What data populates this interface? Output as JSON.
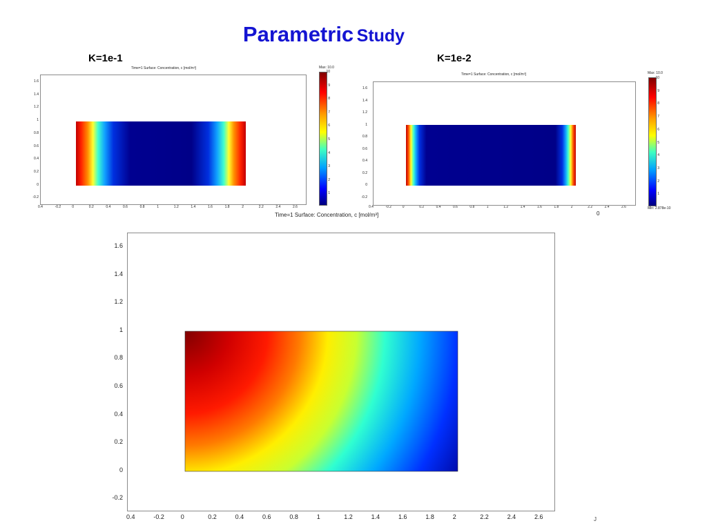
{
  "title": {
    "main": "Parametric",
    "second": "Study"
  },
  "panels": [
    {
      "label": "K=1e-1",
      "header": "Time=1  Surface: Concentration, c [mol/m³]",
      "colorbar_max": "Max: 10.0",
      "colorbar_min": "",
      "colorbar_ticks": [
        "10",
        "9",
        "8",
        "7",
        "6",
        "5",
        "4",
        "3",
        "2",
        "1"
      ],
      "x_ticks": [
        "0.4",
        "-0.2",
        "0",
        "0.2",
        "0.4",
        "0.6",
        "0.8",
        "1",
        "1.2",
        "1.4",
        "1.6",
        "1.8",
        "2",
        "2.2",
        "2.4",
        "2.6"
      ],
      "y_ticks": [
        "1.6",
        "1.4",
        "1.2",
        "1",
        "0.8",
        "0.6",
        "0.4",
        "0.2",
        "0",
        "-0.2"
      ]
    },
    {
      "label": "K=1e-2",
      "header": "Time=1  Surface: Concentration, c [mol/m³]",
      "colorbar_max": "Max: 10.0",
      "colorbar_min": "Min: 2.878e-10",
      "colorbar_ticks": [
        "10",
        "9",
        "8",
        "7",
        "6",
        "5",
        "4",
        "3",
        "2",
        "1"
      ],
      "x_ticks": [
        "0.4",
        "-0.2",
        "0",
        "0.2",
        "0.4",
        "0.6",
        "0.8",
        "1",
        "1.2",
        "1.4",
        "1.6",
        "1.8",
        "2",
        "2.2",
        "2.4",
        "2.6"
      ],
      "y_ticks": [
        "1.6",
        "1.4",
        "1.2",
        "1",
        "0.8",
        "0.6",
        "0.4",
        "0.2",
        "0",
        "-0.2"
      ]
    }
  ],
  "caption": "Time=1   Surface: Concentration, c [mol/m³]",
  "caption_right": "0",
  "main_plot": {
    "x_ticks": [
      "0.4",
      "-0.2",
      "0",
      "0.2",
      "0.4",
      "0.6",
      "0.8",
      "1",
      "1.2",
      "1.4",
      "1.6",
      "1.8",
      "2",
      "2.2",
      "2.4",
      "2.6"
    ],
    "y_ticks": [
      "1.6",
      "1.4",
      "1.2",
      "1",
      "0.8",
      "0.6",
      "0.4",
      "0.2",
      "0",
      "-0.2"
    ]
  },
  "corner_mark": "J"
}
